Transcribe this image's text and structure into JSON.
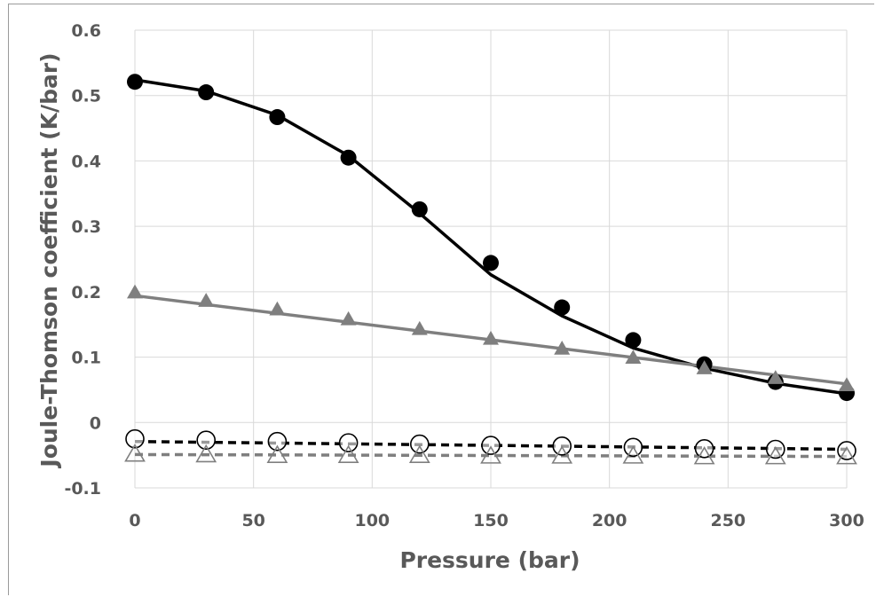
{
  "chart_data": {
    "type": "line",
    "title": "",
    "xlabel": "Pressure (bar)",
    "ylabel": "Joule-Thomson coefficient  (K/bar)",
    "xlim": [
      0,
      300
    ],
    "ylim": [
      -0.1,
      0.6
    ],
    "x_ticks": [
      "0",
      "50",
      "100",
      "150",
      "200",
      "250",
      "300"
    ],
    "y_ticks": [
      "-0.1",
      "0",
      "0.1",
      "0.2",
      "0.3",
      "0.4",
      "0.5",
      "0.6"
    ],
    "x_tick_values": [
      0,
      50,
      100,
      150,
      200,
      250,
      300
    ],
    "y_tick_values": [
      -0.1,
      0,
      0.1,
      0.2,
      0.3,
      0.4,
      0.5,
      0.6
    ],
    "grid": true,
    "legend": "none",
    "series": [
      {
        "marker": "filled-circle",
        "color": "#000000",
        "points": [
          [
            0,
            0.521
          ],
          [
            30,
            0.505
          ],
          [
            60,
            0.467
          ],
          [
            90,
            0.405
          ],
          [
            120,
            0.326
          ],
          [
            150,
            0.244
          ],
          [
            180,
            0.176
          ],
          [
            210,
            0.126
          ],
          [
            240,
            0.089
          ],
          [
            270,
            0.062
          ],
          [
            300,
            0.045
          ]
        ]
      },
      {
        "line": "solid",
        "color": "#000000",
        "points": [
          [
            0,
            0.524
          ],
          [
            30,
            0.507
          ],
          [
            60,
            0.47
          ],
          [
            90,
            0.408
          ],
          [
            120,
            0.32
          ],
          [
            150,
            0.226
          ],
          [
            180,
            0.163
          ],
          [
            210,
            0.114
          ],
          [
            240,
            0.083
          ],
          [
            270,
            0.06
          ],
          [
            300,
            0.044
          ]
        ]
      },
      {
        "marker": "filled-triangle",
        "color": "#7f7f7f",
        "points": [
          [
            0,
            0.199
          ],
          [
            30,
            0.186
          ],
          [
            60,
            0.173
          ],
          [
            90,
            0.158
          ],
          [
            120,
            0.143
          ],
          [
            150,
            0.128
          ],
          [
            180,
            0.113
          ],
          [
            210,
            0.099
          ],
          [
            240,
            0.083
          ],
          [
            270,
            0.068
          ],
          [
            300,
            0.057
          ]
        ]
      },
      {
        "line": "solid",
        "color": "#7f7f7f",
        "points": [
          [
            0,
            0.194
          ],
          [
            300,
            0.059
          ]
        ]
      },
      {
        "marker": "open-circle",
        "color": "#000000",
        "points": [
          [
            0,
            -0.025
          ],
          [
            30,
            -0.027
          ],
          [
            60,
            -0.029
          ],
          [
            90,
            -0.031
          ],
          [
            120,
            -0.033
          ],
          [
            150,
            -0.035
          ],
          [
            180,
            -0.036
          ],
          [
            210,
            -0.038
          ],
          [
            240,
            -0.04
          ],
          [
            270,
            -0.041
          ],
          [
            300,
            -0.043
          ]
        ]
      },
      {
        "line": "dashed",
        "color": "#000000",
        "points": [
          [
            0,
            -0.029
          ],
          [
            300,
            -0.041
          ]
        ]
      },
      {
        "marker": "open-triangle",
        "color": "#7f7f7f",
        "points": [
          [
            0,
            -0.048
          ],
          [
            30,
            -0.049
          ],
          [
            60,
            -0.05
          ],
          [
            90,
            -0.05
          ],
          [
            120,
            -0.05
          ],
          [
            150,
            -0.051
          ],
          [
            180,
            -0.051
          ],
          [
            210,
            -0.051
          ],
          [
            240,
            -0.052
          ],
          [
            270,
            -0.052
          ],
          [
            300,
            -0.052
          ]
        ]
      },
      {
        "line": "dashed",
        "color": "#7f7f7f",
        "points": [
          [
            0,
            -0.049
          ],
          [
            300,
            -0.052
          ]
        ]
      }
    ]
  }
}
